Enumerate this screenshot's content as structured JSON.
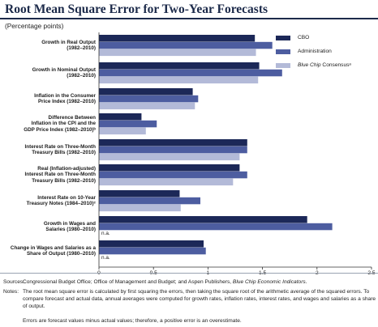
{
  "title": "Root Mean Square Error for Two-Year Forecasts",
  "subtitle": "(Percentage points)",
  "chart_data": {
    "type": "bar",
    "orientation": "horizontal",
    "categories": [
      [
        "Growth in Real Output",
        "(1982–2010)"
      ],
      [
        "Growth in Nominal Output",
        "(1982–2010)"
      ],
      [
        "Inflation in the Consumer",
        "Price Index (1982–2010)"
      ],
      [
        "Difference Between",
        "Inflation in the CPI and the",
        "GDP Price Index (1982–2010)ᵇ"
      ],
      [
        "Interest Rate on Three-Month",
        "Treasury Bills (1982–2010)"
      ],
      [
        "Real (Inflation-adjusted)",
        "Interest Rate on Three-Month",
        "Treasury Bills (1982–2010)"
      ],
      [
        "Interest Rate on 10-Year",
        "Treasury Notes (1984–2010)ᶜ"
      ],
      [
        "Growth in Wages and",
        "Salaries (1980–2010)"
      ],
      [
        "Change in Wages and Salaries as a",
        "Share of Output (1980–2010)"
      ]
    ],
    "series": [
      {
        "name": "CBO",
        "color": "#1c2858",
        "values": [
          1.43,
          1.47,
          0.86,
          0.39,
          1.36,
          1.29,
          0.74,
          1.91,
          0.96
        ]
      },
      {
        "name": "Administration",
        "color": "#4d5da0",
        "values": [
          1.59,
          1.68,
          0.91,
          0.53,
          1.36,
          1.36,
          0.93,
          2.14,
          0.98
        ]
      },
      {
        "name": "Blue Chip Consensusᵃ",
        "color": "#b3bad8",
        "values": [
          1.44,
          1.46,
          0.88,
          0.43,
          1.29,
          1.23,
          0.75,
          null,
          null
        ]
      }
    ],
    "na_label": "n.a.",
    "xlim": [
      0,
      2.5
    ],
    "xticks": [
      "0",
      "0.5",
      "1",
      "1.5",
      "2",
      "2.5"
    ],
    "xtick_values": [
      0,
      0.5,
      1,
      1.5,
      2,
      2.5
    ],
    "legend_position": "top-right",
    "grid": false
  },
  "legend": {
    "cbo": "CBO",
    "admin": "Administration",
    "bluechip_italic": "Blue Chip",
    "bluechip_rest": " Consensusᵃ"
  },
  "notes": {
    "sources_label": "Sources:",
    "sources_text_1": "Congressional Budget Office; Office of Management and Budget; and Aspen Publishers, ",
    "sources_text_italic": "Blue Chip Economic Indicators",
    "sources_text_2": ".",
    "notes_label": "Notes:",
    "notes_text": "The root mean square error is calculated by first squaring the errors, then taking the square root of the arithmetic average of the squared errors. To compare forecast and actual data, annual averages were computed for growth rates, inflation rates, interest rates, and wages and salaries as a share of output.",
    "errors_text": "Errors are forecast values minus actual values; therefore, a positive error is an overestimate."
  }
}
